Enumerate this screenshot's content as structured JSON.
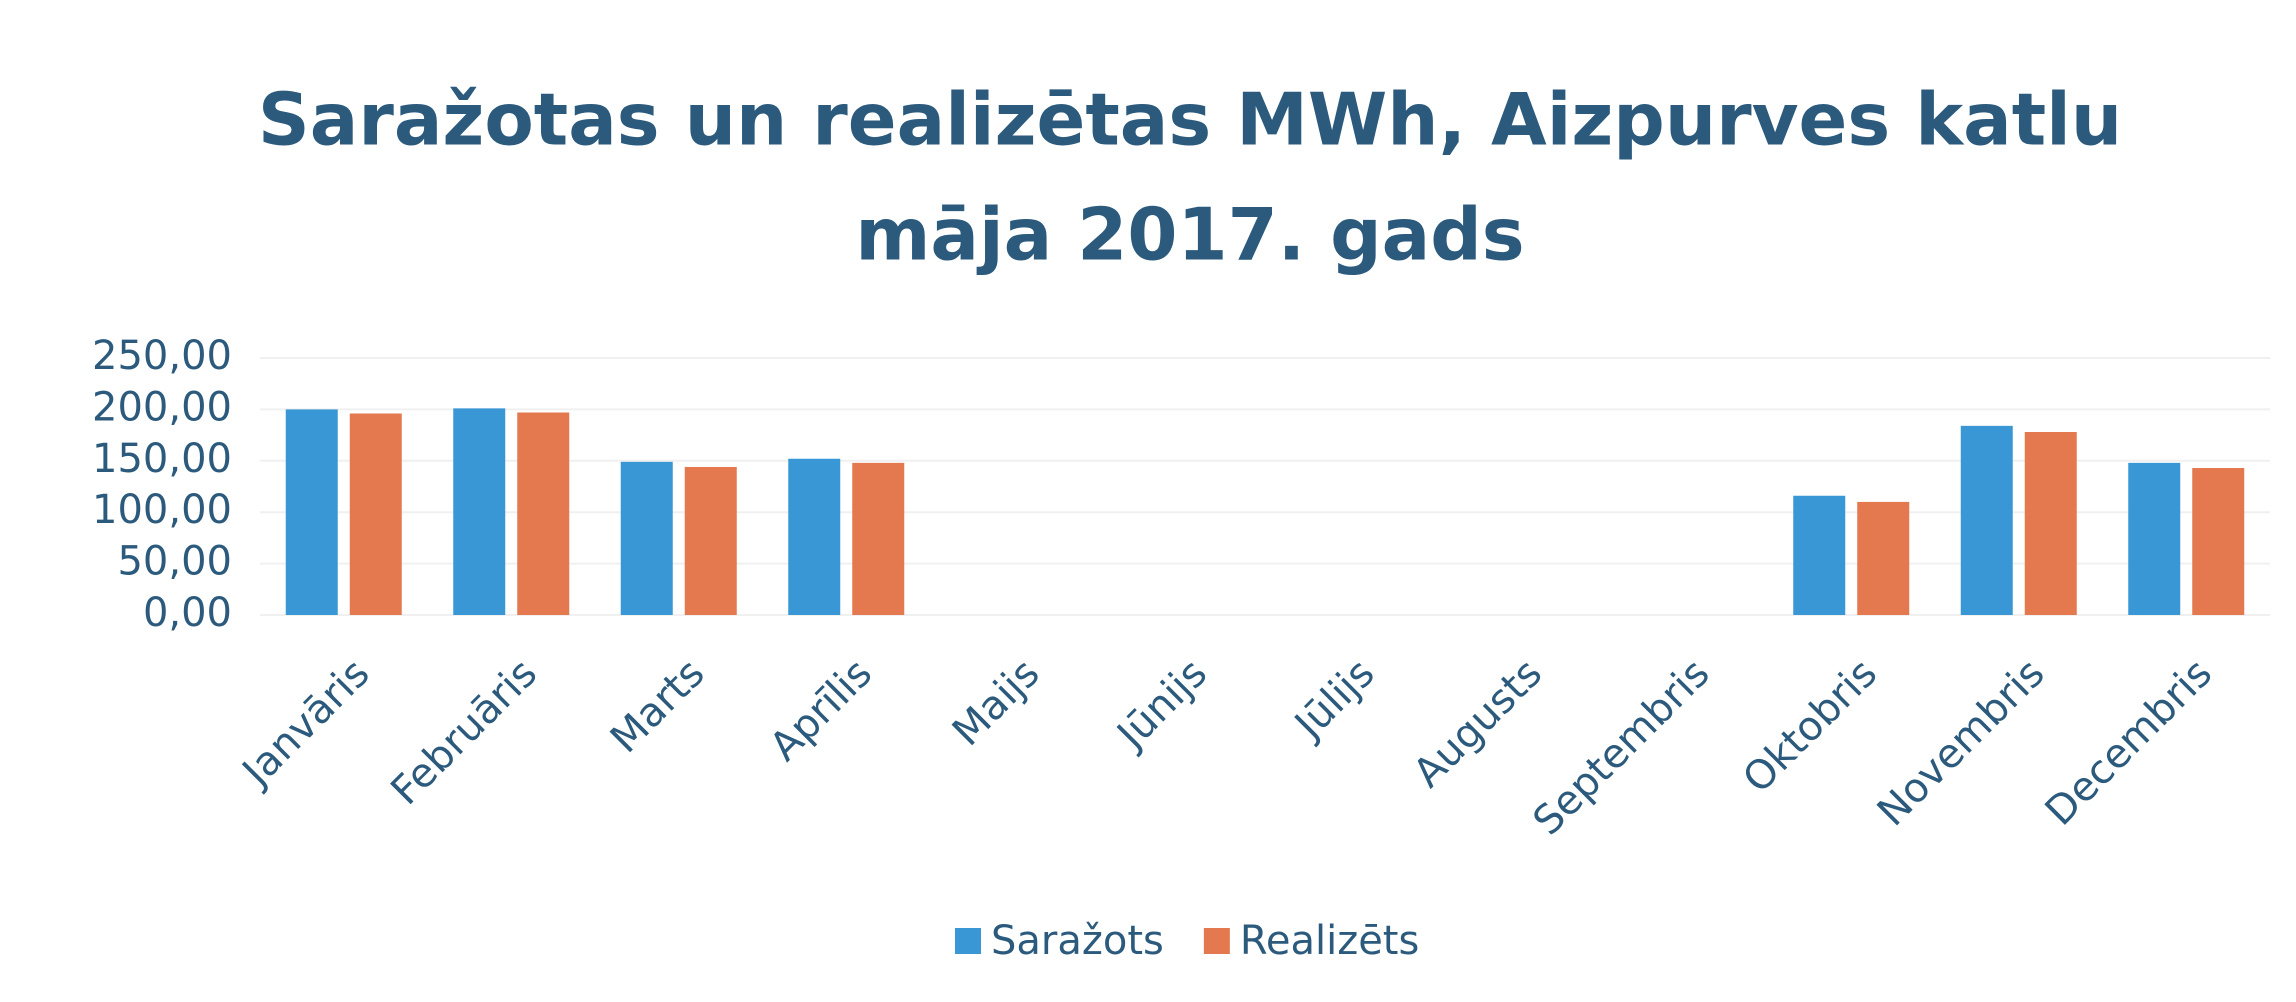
{
  "chart_data": {
    "type": "bar",
    "title": "Saražotas un realizētas MWh, Aizpurves katlu",
    "subtitle": "māja 2017. gads",
    "categories": [
      "Janvāris",
      "Februāris",
      "Marts",
      "Aprīlis",
      "Maijs",
      "Jūnijs",
      "Jūlijs",
      "Augusts",
      "Septembris",
      "Oktobris",
      "Novembris",
      "Decembris"
    ],
    "series": [
      {
        "name": "Saražots",
        "color": "#3a97d6",
        "values": [
          200,
          201,
          149,
          152,
          0,
          0,
          0,
          0,
          0,
          116,
          184,
          148
        ]
      },
      {
        "name": "Realizēts",
        "color": "#e4794f",
        "values": [
          196,
          197,
          144,
          148,
          0,
          0,
          0,
          0,
          0,
          110,
          178,
          143
        ]
      }
    ],
    "ylim": [
      0,
      250
    ],
    "yticks": [
      {
        "value": 0,
        "label": "0,00"
      },
      {
        "value": 50,
        "label": "50,00"
      },
      {
        "value": 100,
        "label": "100,00"
      },
      {
        "value": 150,
        "label": "150,00"
      },
      {
        "value": 200,
        "label": "200,00"
      },
      {
        "value": 250,
        "label": "250,00"
      }
    ],
    "grid": true,
    "legend": "bottom"
  }
}
